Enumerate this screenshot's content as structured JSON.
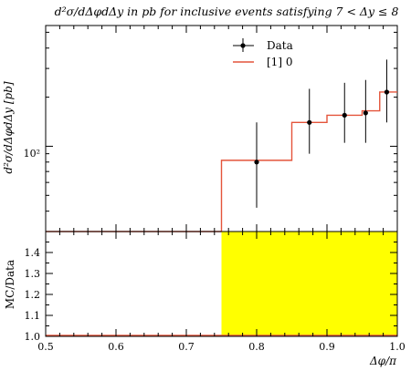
{
  "chart_data": {
    "type": "line",
    "title": "d²σ/dΔφdΔy in pb for inclusive events satisfying 7 < Δy ≤ 8",
    "xlabel": "Δφ/π",
    "ylabel": "d²σ/dΔφdΔy [pb]",
    "ratio_ylabel": "MC/Data",
    "xlim": [
      0.5,
      1.0
    ],
    "ylim": [
      30,
      550
    ],
    "y_scale": "log",
    "x_ticks": [
      "0.5",
      "0.6",
      "0.7",
      "0.8",
      "0.9",
      "1.0"
    ],
    "y_tick_label": "10²",
    "y_tick_value": 100,
    "ratio_ylim": [
      1.0,
      1.5
    ],
    "ratio_ticks": [
      "1.0",
      "1.1",
      "1.2",
      "1.3",
      "1.4"
    ],
    "legend": {
      "position": "top-right",
      "data_label": "Data",
      "mc_label": "[1] 0"
    },
    "data": {
      "name": "Data",
      "x": [
        0.8,
        0.875,
        0.925,
        0.955,
        0.985
      ],
      "y": [
        80,
        140,
        155,
        160,
        215
      ],
      "y_err_low": [
        38,
        50,
        50,
        55,
        75
      ],
      "y_err_high": [
        60,
        85,
        90,
        95,
        125
      ]
    },
    "mc": {
      "name": "[1] 0",
      "bin_edges": [
        0.5,
        0.75,
        0.85,
        0.9,
        0.95,
        0.975,
        1.0
      ],
      "values": [
        0,
        82,
        140,
        155,
        165,
        215
      ]
    },
    "ratio_band": {
      "x_start": 0.75,
      "x_end": 1.0,
      "color": "#ffff00"
    },
    "colors": {
      "mc": "#e4543a",
      "data": "#000000",
      "band": "#ffff00"
    }
  }
}
